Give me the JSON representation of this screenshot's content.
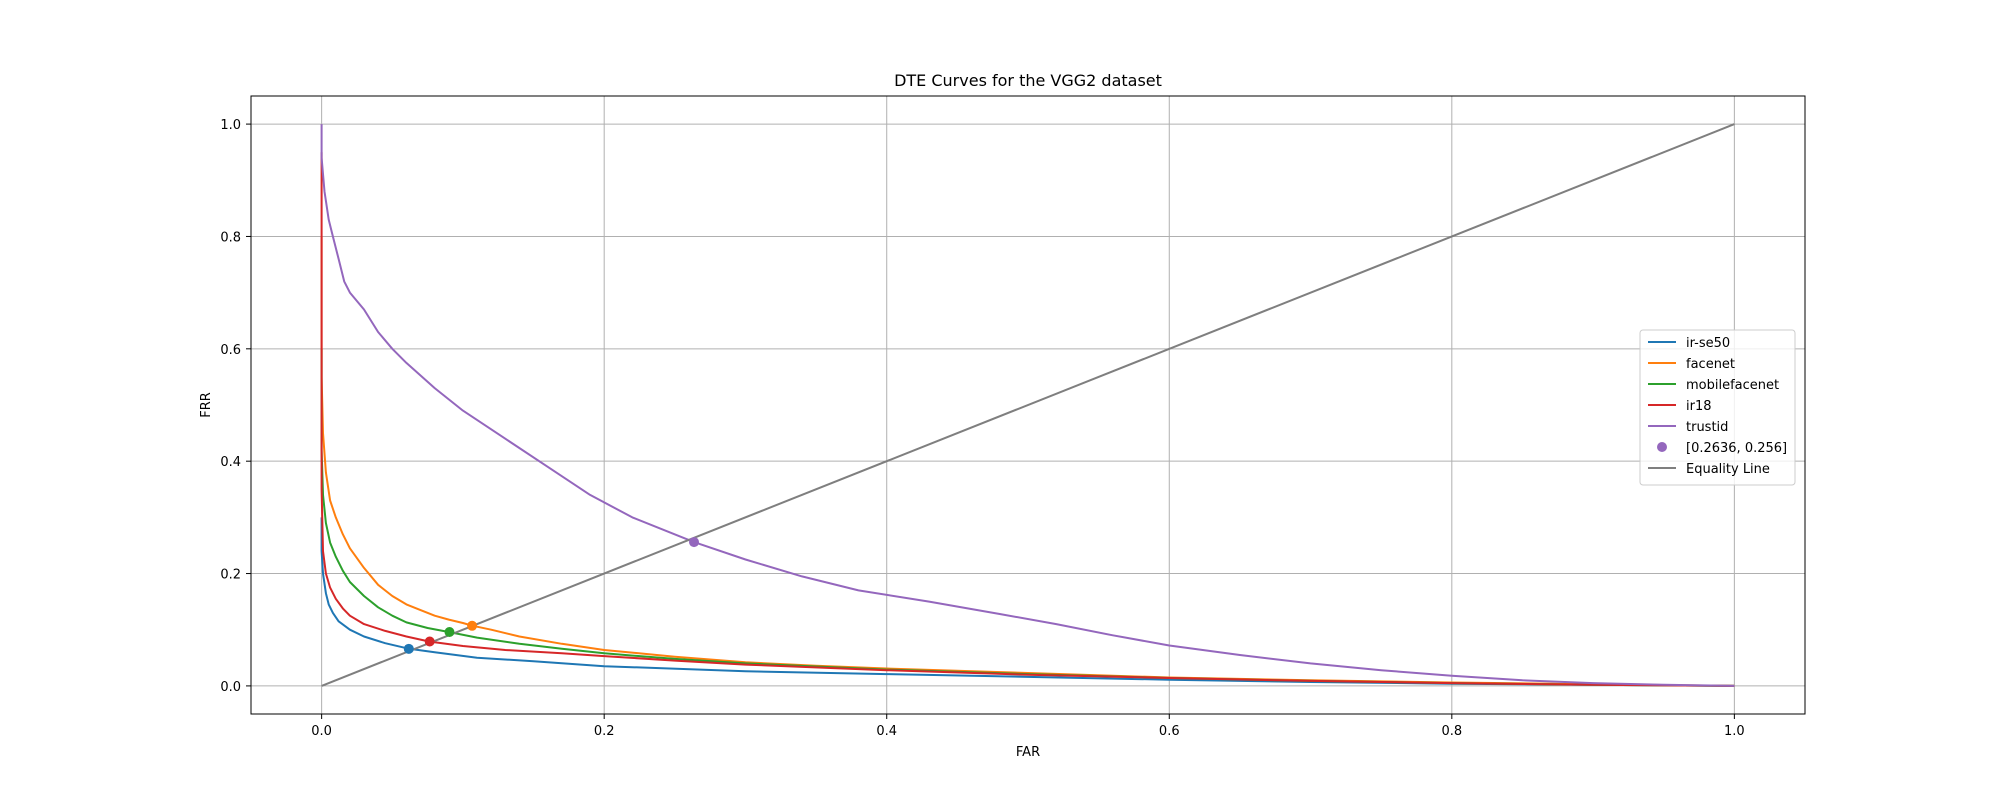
{
  "chart_data": {
    "type": "line",
    "title": "DTE Curves for the VGG2 dataset",
    "xlabel": "FAR",
    "ylabel": "FRR",
    "xlim": [
      -0.05,
      1.05
    ],
    "ylim": [
      -0.05,
      1.05
    ],
    "xticks": [
      0.0,
      0.2,
      0.4,
      0.6,
      0.8,
      1.0
    ],
    "yticks": [
      0.0,
      0.2,
      0.4,
      0.6,
      0.8,
      1.0
    ],
    "xtick_labels": [
      "0.0",
      "0.2",
      "0.4",
      "0.6",
      "0.8",
      "1.0"
    ],
    "ytick_labels": [
      "0.0",
      "0.2",
      "0.4",
      "0.6",
      "0.8",
      "1.0"
    ],
    "grid": true,
    "legend_position": "center-right",
    "series": [
      {
        "name": "ir-se50",
        "color": "#1f77b4",
        "x": [
          0.0,
          0.0,
          0.001,
          0.003,
          0.005,
          0.008,
          0.012,
          0.02,
          0.03,
          0.045,
          0.062,
          0.08,
          0.11,
          0.15,
          0.2,
          0.3,
          0.4,
          0.5,
          0.6,
          0.7,
          0.8,
          0.9,
          1.0
        ],
        "y": [
          0.3,
          0.24,
          0.2,
          0.165,
          0.145,
          0.13,
          0.115,
          0.1,
          0.088,
          0.076,
          0.066,
          0.06,
          0.05,
          0.044,
          0.035,
          0.026,
          0.021,
          0.016,
          0.011,
          0.007,
          0.004,
          0.002,
          0.0
        ]
      },
      {
        "name": "facenet",
        "color": "#ff7f0e",
        "x": [
          0.0,
          0.0,
          0.001,
          0.003,
          0.006,
          0.01,
          0.015,
          0.02,
          0.03,
          0.04,
          0.05,
          0.06,
          0.07,
          0.08,
          0.09,
          0.1,
          0.107,
          0.12,
          0.14,
          0.17,
          0.2,
          0.25,
          0.3,
          0.35,
          0.4,
          0.5,
          0.6,
          0.7,
          0.8,
          0.9,
          1.0
        ],
        "y": [
          0.8,
          0.55,
          0.45,
          0.38,
          0.33,
          0.3,
          0.27,
          0.245,
          0.21,
          0.18,
          0.16,
          0.145,
          0.135,
          0.125,
          0.118,
          0.112,
          0.107,
          0.1,
          0.088,
          0.075,
          0.064,
          0.052,
          0.042,
          0.036,
          0.031,
          0.023,
          0.015,
          0.01,
          0.006,
          0.003,
          0.0
        ]
      },
      {
        "name": "mobilefacenet",
        "color": "#2ca02c",
        "x": [
          0.0,
          0.0,
          0.001,
          0.003,
          0.006,
          0.01,
          0.015,
          0.02,
          0.03,
          0.04,
          0.05,
          0.06,
          0.075,
          0.09,
          0.11,
          0.14,
          0.17,
          0.2,
          0.25,
          0.3,
          0.4,
          0.5,
          0.6,
          0.7,
          0.8,
          0.9,
          1.0
        ],
        "y": [
          0.6,
          0.42,
          0.34,
          0.29,
          0.255,
          0.23,
          0.205,
          0.185,
          0.16,
          0.14,
          0.125,
          0.113,
          0.103,
          0.096,
          0.086,
          0.075,
          0.066,
          0.058,
          0.048,
          0.04,
          0.029,
          0.021,
          0.014,
          0.009,
          0.005,
          0.002,
          0.0
        ]
      },
      {
        "name": "ir18",
        "color": "#d62728",
        "x": [
          0.0,
          0.0,
          0.001,
          0.003,
          0.006,
          0.01,
          0.015,
          0.02,
          0.03,
          0.045,
          0.06,
          0.076,
          0.1,
          0.13,
          0.17,
          0.2,
          0.25,
          0.3,
          0.4,
          0.5,
          0.6,
          0.7,
          0.8,
          0.9,
          1.0
        ],
        "y": [
          0.95,
          0.35,
          0.24,
          0.2,
          0.175,
          0.155,
          0.138,
          0.125,
          0.11,
          0.098,
          0.088,
          0.079,
          0.071,
          0.064,
          0.058,
          0.053,
          0.045,
          0.038,
          0.028,
          0.02,
          0.014,
          0.009,
          0.005,
          0.002,
          0.0
        ]
      },
      {
        "name": "trustid",
        "color": "#9467bd",
        "x": [
          0.0,
          0.0,
          0.002,
          0.005,
          0.008,
          0.012,
          0.016,
          0.02,
          0.03,
          0.04,
          0.05,
          0.06,
          0.08,
          0.1,
          0.13,
          0.16,
          0.19,
          0.22,
          0.2636,
          0.3,
          0.34,
          0.38,
          0.43,
          0.48,
          0.52,
          0.56,
          0.6,
          0.65,
          0.7,
          0.75,
          0.8,
          0.85,
          0.9,
          0.95,
          1.0
        ],
        "y": [
          1.0,
          0.94,
          0.88,
          0.83,
          0.8,
          0.76,
          0.72,
          0.7,
          0.67,
          0.63,
          0.6,
          0.575,
          0.53,
          0.49,
          0.44,
          0.39,
          0.34,
          0.3,
          0.256,
          0.225,
          0.195,
          0.17,
          0.15,
          0.128,
          0.11,
          0.09,
          0.072,
          0.055,
          0.04,
          0.028,
          0.018,
          0.01,
          0.005,
          0.002,
          0.0
        ]
      },
      {
        "name": "Equality Line",
        "color": "#7f7f7f",
        "x": [
          0.0,
          1.0
        ],
        "y": [
          0.0,
          1.0
        ]
      }
    ],
    "points": [
      {
        "x": 0.0617,
        "y": 0.066,
        "color": "#1f77b4"
      },
      {
        "x": 0.1065,
        "y": 0.107,
        "color": "#ff7f0e"
      },
      {
        "x": 0.0905,
        "y": 0.096,
        "color": "#2ca02c"
      },
      {
        "x": 0.0765,
        "y": 0.079,
        "color": "#d62728"
      },
      {
        "x": 0.2636,
        "y": 0.256,
        "color": "#9467bd",
        "label": "[0.2636, 0.256]"
      }
    ],
    "legend": [
      {
        "label": "ir-se50",
        "kind": "line",
        "color": "#1f77b4"
      },
      {
        "label": "facenet",
        "kind": "line",
        "color": "#ff7f0e"
      },
      {
        "label": "mobilefacenet",
        "kind": "line",
        "color": "#2ca02c"
      },
      {
        "label": "ir18",
        "kind": "line",
        "color": "#d62728"
      },
      {
        "label": "trustid",
        "kind": "line",
        "color": "#9467bd"
      },
      {
        "label": "[0.2636, 0.256]",
        "kind": "marker",
        "color": "#9467bd"
      },
      {
        "label": "Equality Line",
        "kind": "line",
        "color": "#7f7f7f"
      }
    ]
  }
}
